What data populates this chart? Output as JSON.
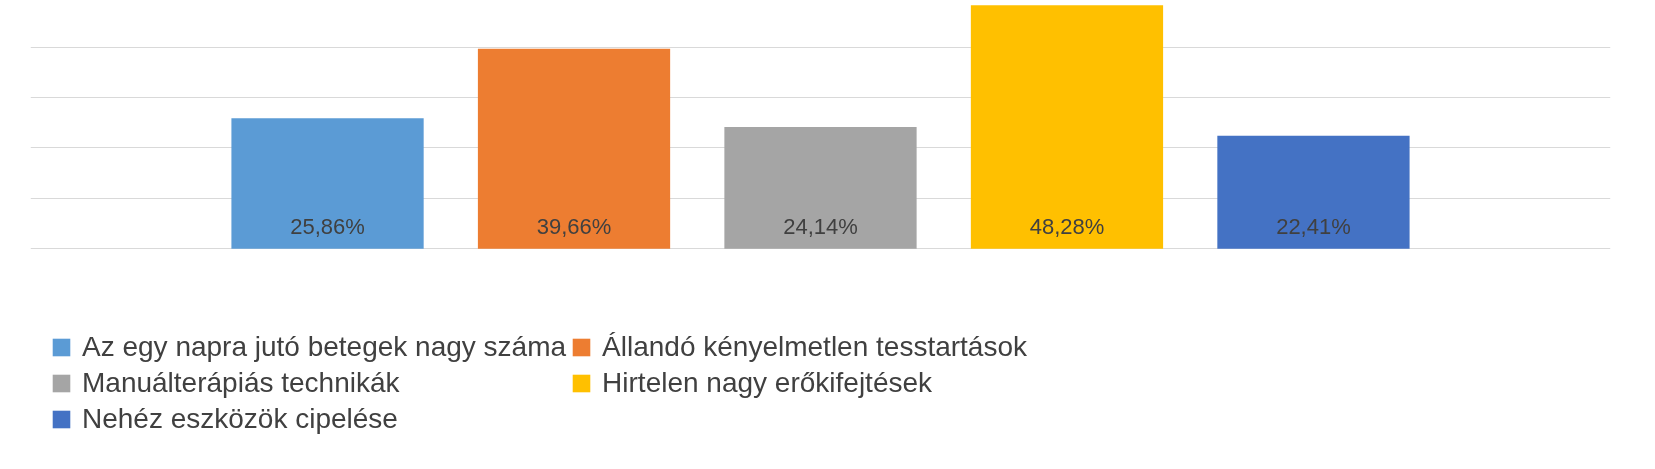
{
  "chart_data": {
    "type": "bar",
    "categories": [
      null
    ],
    "series": [
      {
        "name": "Az egy napra jutó betegek nagy száma",
        "color": "#5b9bd5",
        "values": [
          25.86
        ],
        "value_labels": [
          "25,86%"
        ]
      },
      {
        "name": "Állandó kényelmetlen tesstartások",
        "color": "#ed7d31",
        "values": [
          39.66
        ],
        "value_labels": [
          "39,66%"
        ]
      },
      {
        "name": "Manuálterápiás technikák",
        "color": "#a5a5a5",
        "values": [
          24.14
        ],
        "value_labels": [
          "24,14%"
        ]
      },
      {
        "name": "Hirtelen nagy erőkifejtések",
        "color": "#ffc000",
        "values": [
          48.28
        ],
        "value_labels": [
          "48,28%"
        ]
      },
      {
        "name": "Nehéz eszközök cipelése",
        "color": "#4472c4",
        "values": [
          22.41
        ],
        "value_labels": [
          "22,41%"
        ]
      }
    ],
    "grid": "y",
    "legend": "bottom",
    "tick_labels": false
  }
}
